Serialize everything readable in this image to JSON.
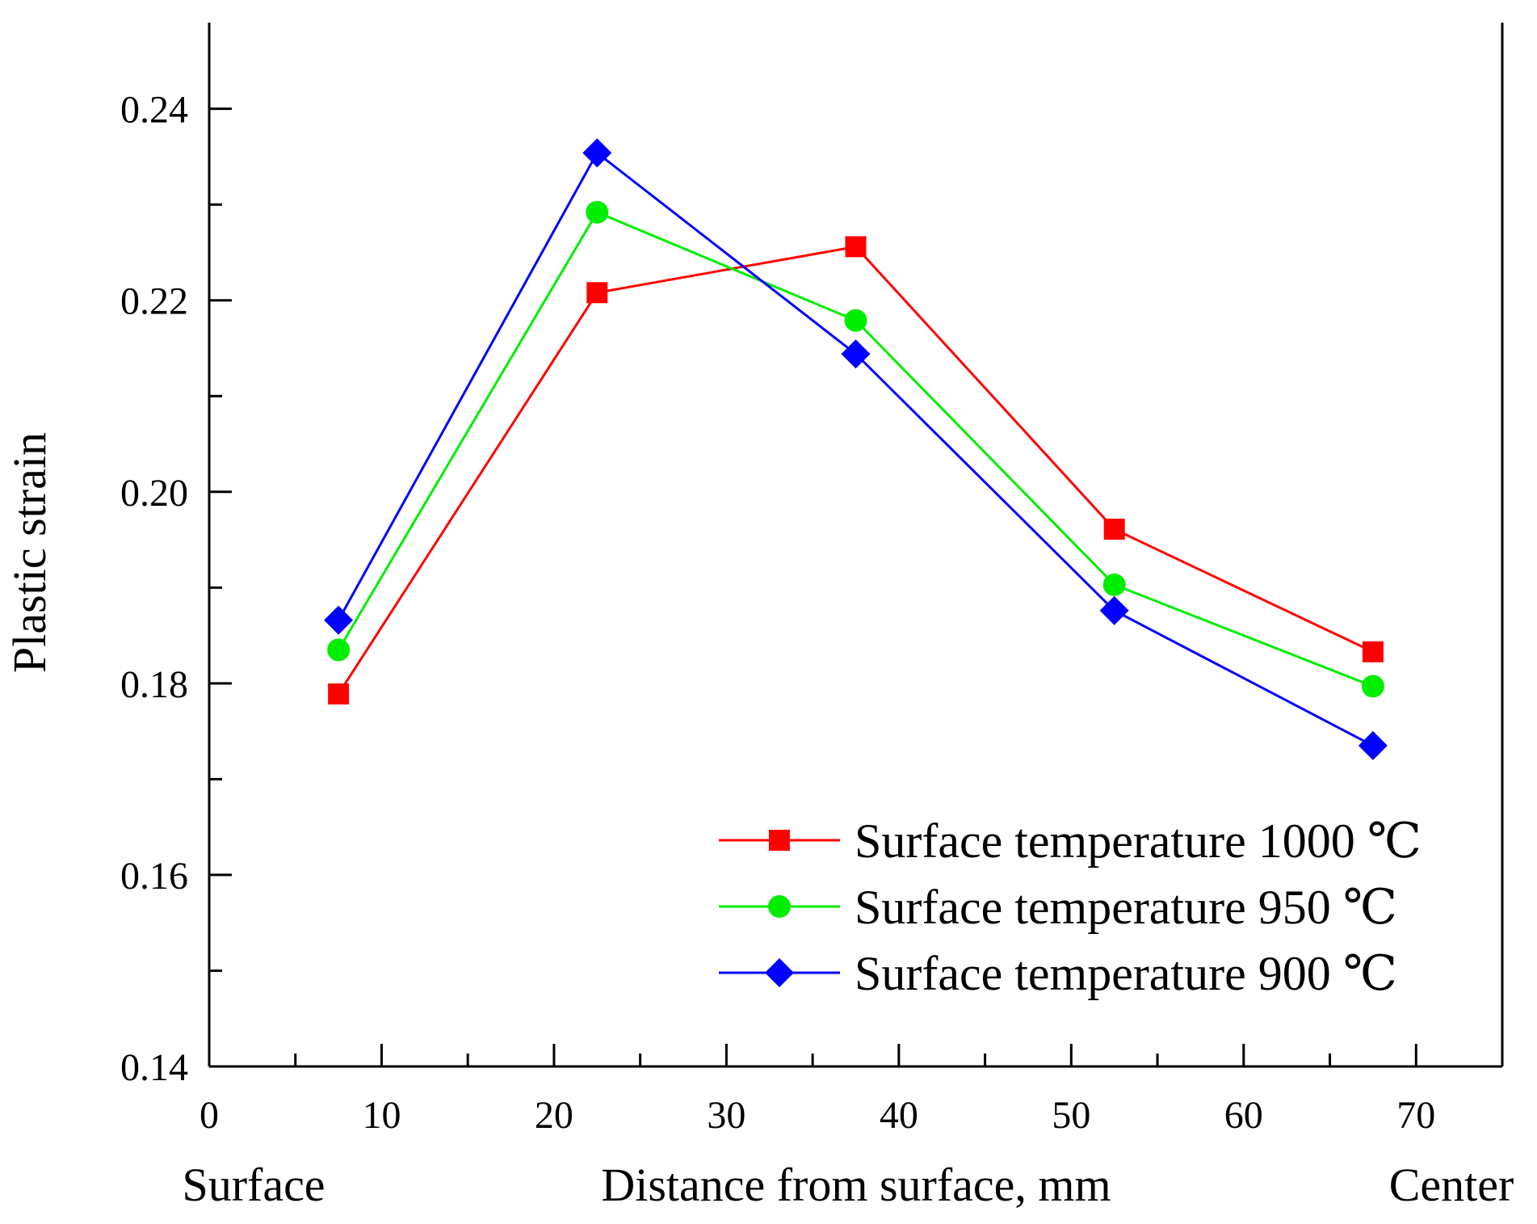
{
  "chart_data": {
    "type": "line",
    "title": "",
    "xlabel": "Distance from surface, mm",
    "ylabel": "Plastic strain",
    "x_annotations": {
      "left": "Surface",
      "right": "Center"
    },
    "xlim": [
      0,
      75
    ],
    "ylim": [
      0.14,
      0.249
    ],
    "xticks": [
      0,
      10,
      20,
      30,
      40,
      50,
      60,
      70
    ],
    "xtick_labels": [
      "0",
      "10",
      "20",
      "30",
      "40",
      "50",
      "60",
      "70"
    ],
    "yticks": [
      0.14,
      0.16,
      0.18,
      0.2,
      0.22,
      0.24
    ],
    "ytick_labels": [
      "0.14",
      "0.16",
      "0.18",
      "0.20",
      "0.22",
      "0.24"
    ],
    "x_minor_step": 5,
    "y_minor_step": 0.01,
    "grid": false,
    "legend_position": "bottom-right",
    "x": [
      7.5,
      22.5,
      37.5,
      52.5,
      67.5
    ],
    "series": [
      {
        "name": "Surface temperature 1000 ℃",
        "color": "#ff0000",
        "marker": "square",
        "values": [
          0.1789,
          0.2208,
          0.2256,
          0.1961,
          0.1833
        ]
      },
      {
        "name": "Surface temperature 950 ℃",
        "color": "#00ee00",
        "marker": "circle",
        "values": [
          0.1835,
          0.2292,
          0.2179,
          0.1903,
          0.1797
        ]
      },
      {
        "name": "Surface temperature 900 ℃",
        "color": "#0000ff",
        "marker": "diamond",
        "values": [
          0.1866,
          0.2354,
          0.2144,
          0.1876,
          0.1735
        ]
      }
    ]
  }
}
